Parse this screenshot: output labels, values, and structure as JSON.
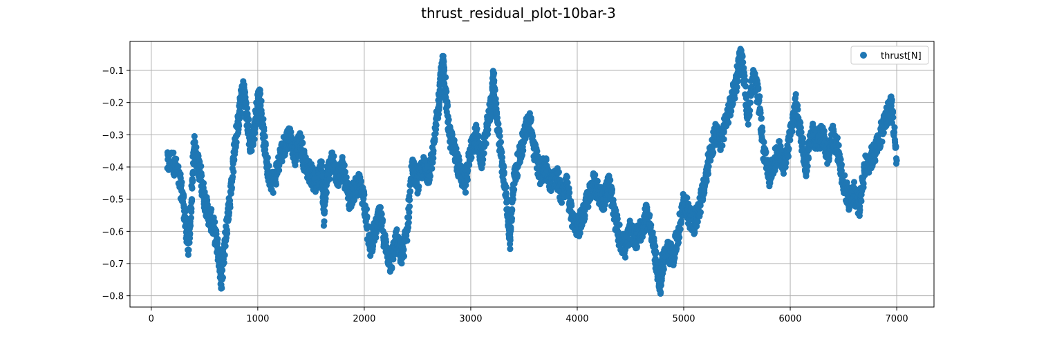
{
  "chart_data": {
    "type": "scatter",
    "title": "thrust_residual_plot-10bar-3",
    "xlabel": "",
    "ylabel": "",
    "xlim": [
      -200,
      7350
    ],
    "ylim": [
      -0.835,
      -0.01
    ],
    "xticks": [
      0,
      1000,
      2000,
      3000,
      4000,
      5000,
      6000,
      7000
    ],
    "yticks": [
      -0.8,
      -0.7,
      -0.6,
      -0.5,
      -0.4,
      -0.3,
      -0.2,
      -0.1
    ],
    "grid": true,
    "legend_position": "top-right",
    "series": [
      {
        "name": "thrust[N]",
        "color": "#1f77b4",
        "points": [
          [
            150,
            -0.39
          ],
          [
            200,
            -0.38
          ],
          [
            250,
            -0.42
          ],
          [
            300,
            -0.5
          ],
          [
            330,
            -0.6
          ],
          [
            350,
            -0.65
          ],
          [
            380,
            -0.5
          ],
          [
            400,
            -0.33
          ],
          [
            430,
            -0.38
          ],
          [
            460,
            -0.42
          ],
          [
            500,
            -0.5
          ],
          [
            540,
            -0.55
          ],
          [
            580,
            -0.58
          ],
          [
            620,
            -0.65
          ],
          [
            650,
            -0.72
          ],
          [
            660,
            -0.76
          ],
          [
            700,
            -0.6
          ],
          [
            740,
            -0.5
          ],
          [
            780,
            -0.35
          ],
          [
            820,
            -0.25
          ],
          [
            850,
            -0.18
          ],
          [
            870,
            -0.16
          ],
          [
            900,
            -0.25
          ],
          [
            930,
            -0.33
          ],
          [
            960,
            -0.3
          ],
          [
            1000,
            -0.2
          ],
          [
            1020,
            -0.18
          ],
          [
            1060,
            -0.32
          ],
          [
            1100,
            -0.42
          ],
          [
            1150,
            -0.45
          ],
          [
            1200,
            -0.38
          ],
          [
            1250,
            -0.33
          ],
          [
            1300,
            -0.3
          ],
          [
            1350,
            -0.36
          ],
          [
            1400,
            -0.32
          ],
          [
            1450,
            -0.4
          ],
          [
            1500,
            -0.42
          ],
          [
            1550,
            -0.46
          ],
          [
            1600,
            -0.4
          ],
          [
            1620,
            -0.55
          ],
          [
            1650,
            -0.43
          ],
          [
            1700,
            -0.38
          ],
          [
            1750,
            -0.43
          ],
          [
            1800,
            -0.4
          ],
          [
            1850,
            -0.5
          ],
          [
            1900,
            -0.48
          ],
          [
            1950,
            -0.45
          ],
          [
            2000,
            -0.5
          ],
          [
            2050,
            -0.65
          ],
          [
            2100,
            -0.6
          ],
          [
            2150,
            -0.55
          ],
          [
            2200,
            -0.65
          ],
          [
            2250,
            -0.7
          ],
          [
            2300,
            -0.62
          ],
          [
            2350,
            -0.68
          ],
          [
            2400,
            -0.6
          ],
          [
            2450,
            -0.4
          ],
          [
            2500,
            -0.45
          ],
          [
            2550,
            -0.4
          ],
          [
            2600,
            -0.42
          ],
          [
            2650,
            -0.35
          ],
          [
            2700,
            -0.2
          ],
          [
            2720,
            -0.12
          ],
          [
            2740,
            -0.08
          ],
          [
            2760,
            -0.15
          ],
          [
            2800,
            -0.3
          ],
          [
            2850,
            -0.35
          ],
          [
            2900,
            -0.42
          ],
          [
            2950,
            -0.45
          ],
          [
            3000,
            -0.35
          ],
          [
            3050,
            -0.3
          ],
          [
            3100,
            -0.38
          ],
          [
            3150,
            -0.28
          ],
          [
            3200,
            -0.2
          ],
          [
            3210,
            -0.12
          ],
          [
            3230,
            -0.2
          ],
          [
            3260,
            -0.3
          ],
          [
            3300,
            -0.4
          ],
          [
            3350,
            -0.55
          ],
          [
            3370,
            -0.63
          ],
          [
            3400,
            -0.45
          ],
          [
            3450,
            -0.38
          ],
          [
            3500,
            -0.3
          ],
          [
            3550,
            -0.25
          ],
          [
            3600,
            -0.35
          ],
          [
            3650,
            -0.42
          ],
          [
            3700,
            -0.4
          ],
          [
            3750,
            -0.45
          ],
          [
            3800,
            -0.42
          ],
          [
            3850,
            -0.48
          ],
          [
            3900,
            -0.45
          ],
          [
            3950,
            -0.55
          ],
          [
            4000,
            -0.6
          ],
          [
            4050,
            -0.55
          ],
          [
            4100,
            -0.5
          ],
          [
            4150,
            -0.45
          ],
          [
            4200,
            -0.48
          ],
          [
            4250,
            -0.5
          ],
          [
            4300,
            -0.45
          ],
          [
            4350,
            -0.55
          ],
          [
            4400,
            -0.62
          ],
          [
            4450,
            -0.65
          ],
          [
            4500,
            -0.6
          ],
          [
            4550,
            -0.62
          ],
          [
            4600,
            -0.6
          ],
          [
            4650,
            -0.55
          ],
          [
            4700,
            -0.6
          ],
          [
            4750,
            -0.72
          ],
          [
            4780,
            -0.76
          ],
          [
            4800,
            -0.7
          ],
          [
            4850,
            -0.66
          ],
          [
            4900,
            -0.68
          ],
          [
            4950,
            -0.6
          ],
          [
            5000,
            -0.5
          ],
          [
            5050,
            -0.55
          ],
          [
            5100,
            -0.58
          ],
          [
            5150,
            -0.52
          ],
          [
            5200,
            -0.45
          ],
          [
            5250,
            -0.35
          ],
          [
            5300,
            -0.3
          ],
          [
            5350,
            -0.32
          ],
          [
            5400,
            -0.25
          ],
          [
            5450,
            -0.2
          ],
          [
            5500,
            -0.12
          ],
          [
            5530,
            -0.06
          ],
          [
            5560,
            -0.1
          ],
          [
            5600,
            -0.25
          ],
          [
            5650,
            -0.12
          ],
          [
            5700,
            -0.18
          ],
          [
            5750,
            -0.35
          ],
          [
            5800,
            -0.43
          ],
          [
            5850,
            -0.38
          ],
          [
            5900,
            -0.35
          ],
          [
            5950,
            -0.4
          ],
          [
            6000,
            -0.3
          ],
          [
            6050,
            -0.2
          ],
          [
            6100,
            -0.3
          ],
          [
            6150,
            -0.4
          ],
          [
            6200,
            -0.28
          ],
          [
            6250,
            -0.32
          ],
          [
            6300,
            -0.3
          ],
          [
            6350,
            -0.36
          ],
          [
            6400,
            -0.3
          ],
          [
            6450,
            -0.35
          ],
          [
            6500,
            -0.45
          ],
          [
            6550,
            -0.5
          ],
          [
            6600,
            -0.48
          ],
          [
            6650,
            -0.52
          ],
          [
            6700,
            -0.4
          ],
          [
            6750,
            -0.38
          ],
          [
            6800,
            -0.35
          ],
          [
            6850,
            -0.3
          ],
          [
            6900,
            -0.25
          ],
          [
            6950,
            -0.2
          ],
          [
            7000,
            -0.38
          ]
        ]
      }
    ]
  }
}
